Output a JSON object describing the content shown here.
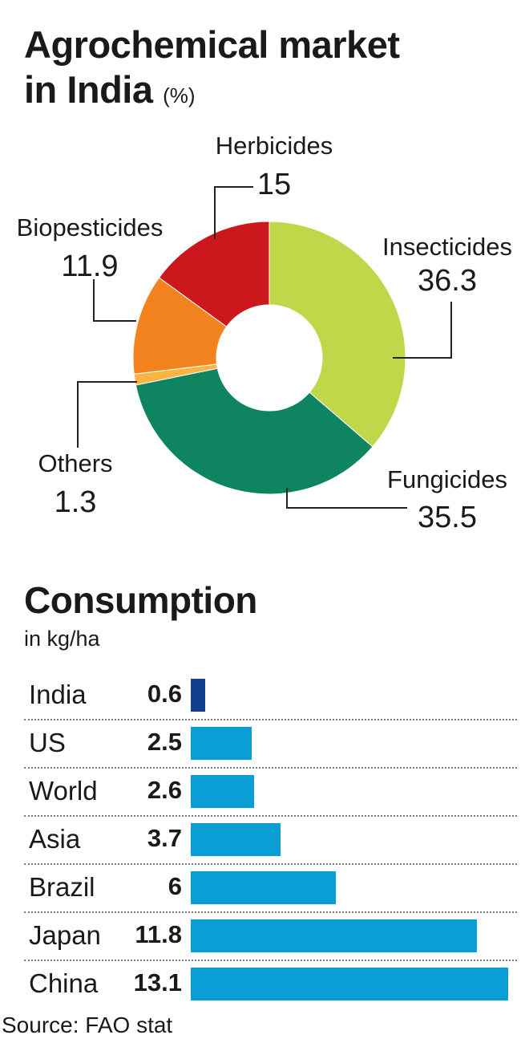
{
  "header": {
    "title_line1": "Agrochemical market",
    "title_line2": "in India",
    "title_unit": "(%)"
  },
  "chart_data": [
    {
      "type": "pie",
      "title": "Agrochemical market in India (%)",
      "donut": true,
      "slices": [
        {
          "label": "Insecticides",
          "value": 36.3,
          "color": "#bfd84a"
        },
        {
          "label": "Fungicides",
          "value": 35.5,
          "color": "#0e8460"
        },
        {
          "label": "Others",
          "value": 1.3,
          "color": "#fbb442"
        },
        {
          "label": "Biopesticides",
          "value": 11.9,
          "color": "#f2831f"
        },
        {
          "label": "Herbicides",
          "value": 15,
          "color": "#cc171c"
        }
      ]
    },
    {
      "type": "bar",
      "orientation": "horizontal",
      "title": "Consumption",
      "subtitle": "in kg/ha",
      "categories": [
        "India",
        "US",
        "World",
        "Asia",
        "Brazil",
        "Japan",
        "China"
      ],
      "values": [
        0.6,
        2.5,
        2.6,
        3.7,
        6,
        11.8,
        13.1
      ],
      "value_labels": [
        "0.6",
        "2.5",
        "2.6",
        "3.7",
        "6",
        "11.8",
        "13.1"
      ],
      "highlight": "India",
      "colors": {
        "bar": "#0a9fd4",
        "highlight": "#143f8e"
      },
      "xlim": [
        0,
        13.1
      ]
    }
  ],
  "footer": {
    "source": "Source: FAO stat"
  }
}
